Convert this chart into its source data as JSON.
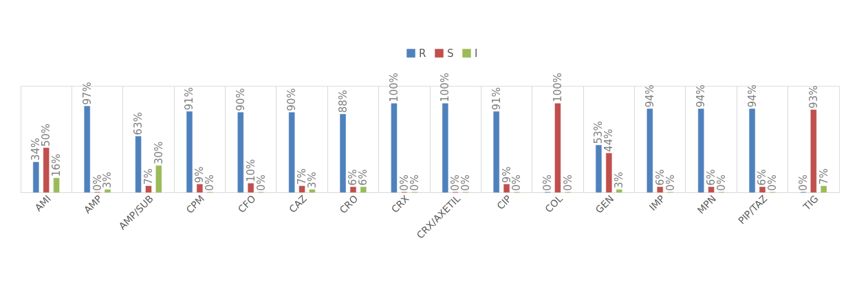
{
  "chart_data": {
    "type": "bar",
    "categories": [
      "AMI",
      "AMP",
      "AMP/SUB",
      "CPM",
      "CFO",
      "CAZ",
      "CRO",
      "CRX",
      "CRX/AXETIL",
      "CIP",
      "COL",
      "GEN",
      "IMP",
      "MPN",
      "PIP/TAZ",
      "TIG"
    ],
    "legend": "top",
    "grid": "x",
    "series": [
      {
        "name": "R",
        "color": "#4f81bd",
        "values": [
          34,
          97,
          63,
          91,
          90,
          90,
          88,
          100,
          100,
          91,
          0,
          53,
          94,
          94,
          94,
          0
        ],
        "value_labels": [
          "34%",
          "97%",
          "63%",
          "91%",
          "90%",
          "90%",
          "88%",
          "100%",
          "100%",
          "91%",
          "0%",
          "53%",
          "94%",
          "94%",
          "94%",
          "0%"
        ]
      },
      {
        "name": "S",
        "color": "#c0504d",
        "values": [
          50,
          0,
          7,
          9,
          10,
          7,
          6,
          0,
          0,
          9,
          100,
          44,
          6,
          6,
          6,
          93
        ],
        "value_labels": [
          "50%",
          "0%",
          "7%",
          "9%",
          "10%",
          "7%",
          "6%",
          "0%",
          "0%",
          "9%",
          "100%",
          "44%",
          "6%",
          "6%",
          "6%",
          "93%"
        ]
      },
      {
        "name": "I",
        "color": "#9bbb59",
        "values": [
          16,
          3,
          30,
          0,
          0,
          3,
          6,
          0,
          0,
          0,
          0,
          3,
          0,
          0,
          0,
          7
        ],
        "value_labels": [
          "16%",
          "3%",
          "30%",
          "0%",
          "0%",
          "3%",
          "6%",
          "0%",
          "0%",
          "0%",
          "0%",
          "3%",
          "0%",
          "0%",
          "0%",
          "7%"
        ]
      }
    ]
  }
}
